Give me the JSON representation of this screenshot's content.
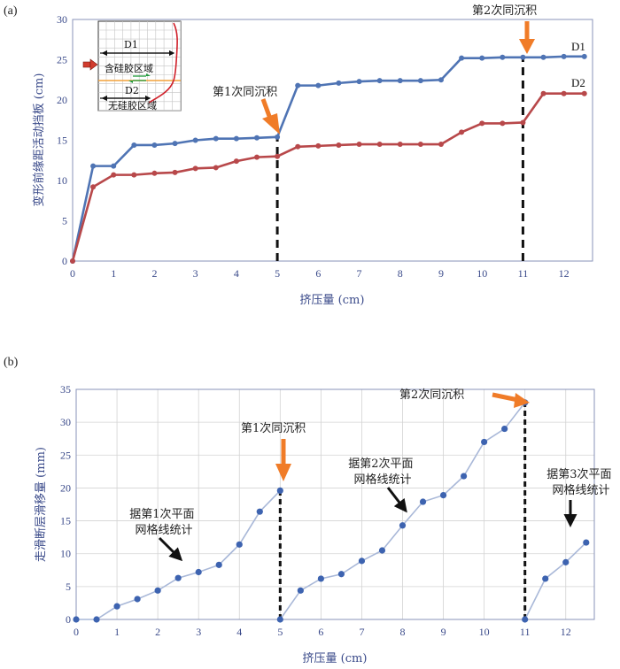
{
  "colors": {
    "blue": "#4f74b4",
    "red": "#b8484a",
    "light_blue": "#a9b8d8",
    "dot": "#3d63b0",
    "orange": "#f07c28",
    "axis_text": "#3a4a8a"
  },
  "chart_data": [
    {
      "panel": "(a)",
      "type": "line",
      "xlabel": "挤压量 (cm)",
      "ylabel": "变形前缘距活动挡板 (cm)",
      "xlim": [
        0,
        12.7
      ],
      "ylim": [
        0,
        30
      ],
      "xticks": [
        "0",
        "1",
        "2",
        "3",
        "4",
        "5",
        "6",
        "7",
        "8",
        "9",
        "10",
        "11",
        "12"
      ],
      "yticks": [
        "0",
        "5",
        "10",
        "15",
        "20",
        "25",
        "30"
      ],
      "grid": false,
      "series": [
        {
          "name": "D1",
          "color": "#4f74b4",
          "points": [
            [
              0,
              0
            ],
            [
              0.5,
              11.8
            ],
            [
              1,
              11.8
            ],
            [
              1.5,
              14.4
            ],
            [
              2,
              14.4
            ],
            [
              2.5,
              14.6
            ],
            [
              3,
              15.0
            ],
            [
              3.5,
              15.2
            ],
            [
              4,
              15.2
            ],
            [
              4.5,
              15.3
            ],
            [
              5,
              15.4
            ],
            [
              5.5,
              21.8
            ],
            [
              6,
              21.8
            ],
            [
              6.5,
              22.1
            ],
            [
              7,
              22.3
            ],
            [
              7.5,
              22.4
            ],
            [
              8,
              22.4
            ],
            [
              8.5,
              22.4
            ],
            [
              9,
              22.5
            ],
            [
              9.5,
              25.2
            ],
            [
              10,
              25.2
            ],
            [
              10.5,
              25.3
            ],
            [
              11,
              25.3
            ],
            [
              11.5,
              25.3
            ],
            [
              12,
              25.4
            ],
            [
              12.5,
              25.4
            ]
          ]
        },
        {
          "name": "D2",
          "color": "#b8484a",
          "points": [
            [
              0,
              0
            ],
            [
              0.5,
              9.2
            ],
            [
              1,
              10.7
            ],
            [
              1.5,
              10.7
            ],
            [
              2,
              10.9
            ],
            [
              2.5,
              11.0
            ],
            [
              3,
              11.5
            ],
            [
              3.5,
              11.6
            ],
            [
              4,
              12.4
            ],
            [
              4.5,
              12.9
            ],
            [
              5,
              13.0
            ],
            [
              5.5,
              14.2
            ],
            [
              6,
              14.3
            ],
            [
              6.5,
              14.4
            ],
            [
              7,
              14.5
            ],
            [
              7.5,
              14.5
            ],
            [
              8,
              14.5
            ],
            [
              8.5,
              14.5
            ],
            [
              9,
              14.5
            ],
            [
              9.5,
              16.0
            ],
            [
              10,
              17.1
            ],
            [
              10.5,
              17.1
            ],
            [
              11,
              17.2
            ],
            [
              11.5,
              20.8
            ],
            [
              12,
              20.8
            ],
            [
              12.5,
              20.8
            ]
          ]
        }
      ],
      "vlines": [
        5,
        11
      ],
      "annotations": [
        {
          "text": "第1次同沉积",
          "x": 5
        },
        {
          "text": "第2次同沉积",
          "x": 11
        }
      ],
      "inset": {
        "labels": [
          "D1",
          "含硅胶区域",
          "D2",
          "无硅胶区域"
        ]
      }
    },
    {
      "panel": "(b)",
      "type": "line",
      "xlabel": "挤压量 (cm)",
      "ylabel": "走滑断层滑移量 (mm)",
      "xlim": [
        0,
        12.7
      ],
      "ylim": [
        0,
        35
      ],
      "xticks": [
        "0",
        "1",
        "2",
        "3",
        "4",
        "5",
        "6",
        "7",
        "8",
        "9",
        "10",
        "11",
        "12"
      ],
      "yticks": [
        "0",
        "5",
        "10",
        "15",
        "20",
        "25",
        "30",
        "35"
      ],
      "grid": true,
      "segments": [
        [
          [
            0,
            0
          ],
          [
            0.5,
            0
          ],
          [
            1,
            2.0
          ],
          [
            1.5,
            3.1
          ],
          [
            2,
            4.4
          ],
          [
            2.5,
            6.3
          ],
          [
            3,
            7.2
          ],
          [
            3.5,
            8.3
          ],
          [
            4,
            11.4
          ],
          [
            4.5,
            16.4
          ],
          [
            5,
            19.6
          ]
        ],
        [
          [
            5,
            0
          ],
          [
            5.5,
            4.4
          ],
          [
            6,
            6.2
          ],
          [
            6.5,
            6.9
          ],
          [
            7,
            8.9
          ],
          [
            7.5,
            10.5
          ],
          [
            8,
            14.3
          ],
          [
            8.5,
            17.9
          ],
          [
            9,
            18.9
          ],
          [
            9.5,
            21.8
          ],
          [
            10,
            27.0
          ],
          [
            10.5,
            29.0
          ],
          [
            11,
            33.0
          ]
        ],
        [
          [
            11,
            0
          ],
          [
            11.5,
            6.2
          ],
          [
            12,
            8.7
          ],
          [
            12.5,
            11.7
          ]
        ]
      ],
      "vlines": [
        5,
        11
      ],
      "annotations": [
        {
          "text": "第1次同沉积",
          "x": 5
        },
        {
          "text": "第2次同沉积",
          "x": 11
        },
        {
          "text": "据第1次平面\n网格线统计"
        },
        {
          "text": "据第2次平面\n网格线统计"
        },
        {
          "text": "据第3次平面\n网格线统计"
        }
      ]
    }
  ]
}
